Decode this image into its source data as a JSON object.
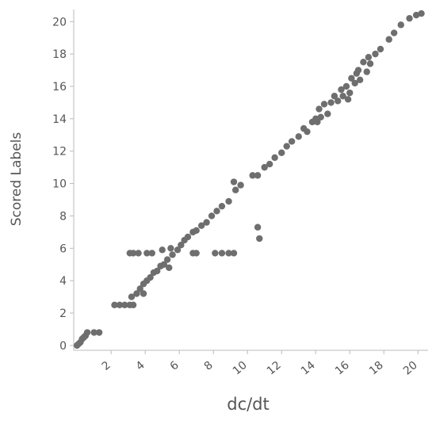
{
  "chart_data": {
    "type": "scatter",
    "x_label": "dc/dt",
    "y_label": "Scored Labels",
    "x": [
      0,
      0.1,
      0.2,
      0.3,
      0.4,
      0.5,
      0.6,
      1.0,
      1.3,
      2.2,
      2.5,
      2.8,
      3.1,
      3.3,
      3.1,
      3.3,
      3.6,
      4.1,
      4.4,
      5.0,
      5.5,
      6.8,
      7.0,
      8.1,
      8.5,
      8.9,
      9.2,
      10.6,
      10.7,
      3.9,
      5.4,
      3.2,
      3.5,
      3.7,
      3.9,
      4.1,
      4.3,
      4.5,
      4.7,
      4.9,
      5.1,
      5.3,
      5.6,
      5.9,
      6.1,
      6.3,
      6.5,
      6.8,
      7.0,
      7.3,
      7.6,
      7.9,
      8.2,
      8.5,
      8.9,
      9.2,
      9.3,
      9.6,
      10.3,
      10.6,
      11.0,
      11.3,
      11.6,
      12.0,
      12.3,
      12.6,
      13.0,
      13.3,
      13.5,
      13.8,
      14.0,
      14.2,
      14.3,
      14.5,
      14.7,
      14.9,
      15.1,
      15.3,
      15.5,
      15.6,
      15.8,
      16.0,
      16.1,
      16.3,
      16.5,
      16.6,
      16.8,
      17.0,
      17.2,
      17.5,
      17.8,
      18.3,
      18.6,
      19.0,
      19.5,
      19.9,
      20.2,
      15.9,
      16.4,
      14.1,
      17.1
    ],
    "values": [
      0,
      0.1,
      0.2,
      0.4,
      0.5,
      0.6,
      0.8,
      0.8,
      0.8,
      2.5,
      2.5,
      2.5,
      2.5,
      2.5,
      5.7,
      5.7,
      5.7,
      5.7,
      5.7,
      5.9,
      6.0,
      5.7,
      5.7,
      5.7,
      5.7,
      5.7,
      5.7,
      7.3,
      6.6,
      3.2,
      4.8,
      3.0,
      3.2,
      3.5,
      3.8,
      4.0,
      4.2,
      4.5,
      4.6,
      4.9,
      5.0,
      5.3,
      5.6,
      5.9,
      6.2,
      6.5,
      6.7,
      7.0,
      7.1,
      7.4,
      7.6,
      8.0,
      8.3,
      8.6,
      8.9,
      10.1,
      9.6,
      9.9,
      10.5,
      10.5,
      11.0,
      11.2,
      11.6,
      11.9,
      12.3,
      12.6,
      12.9,
      13.4,
      13.2,
      13.8,
      14.0,
      14.6,
      14.1,
      14.9,
      14.3,
      15.0,
      15.4,
      15.1,
      15.8,
      15.4,
      16.0,
      15.6,
      16.5,
      16.2,
      17.0,
      16.4,
      17.5,
      16.9,
      17.4,
      18.0,
      18.3,
      18.9,
      19.3,
      19.8,
      20.2,
      20.4,
      20.5,
      15.2,
      16.8,
      13.8,
      17.8
    ],
    "color": "#6e6e6e",
    "xlim": [
      -0.1,
      20.5
    ],
    "ylim": [
      -0.3,
      20.6
    ],
    "xticks": [
      2,
      4,
      6,
      8,
      10,
      12,
      14,
      16,
      18,
      20
    ],
    "yticks": [
      0,
      2,
      4,
      6,
      8,
      10,
      12,
      14,
      16,
      18,
      20
    ]
  }
}
